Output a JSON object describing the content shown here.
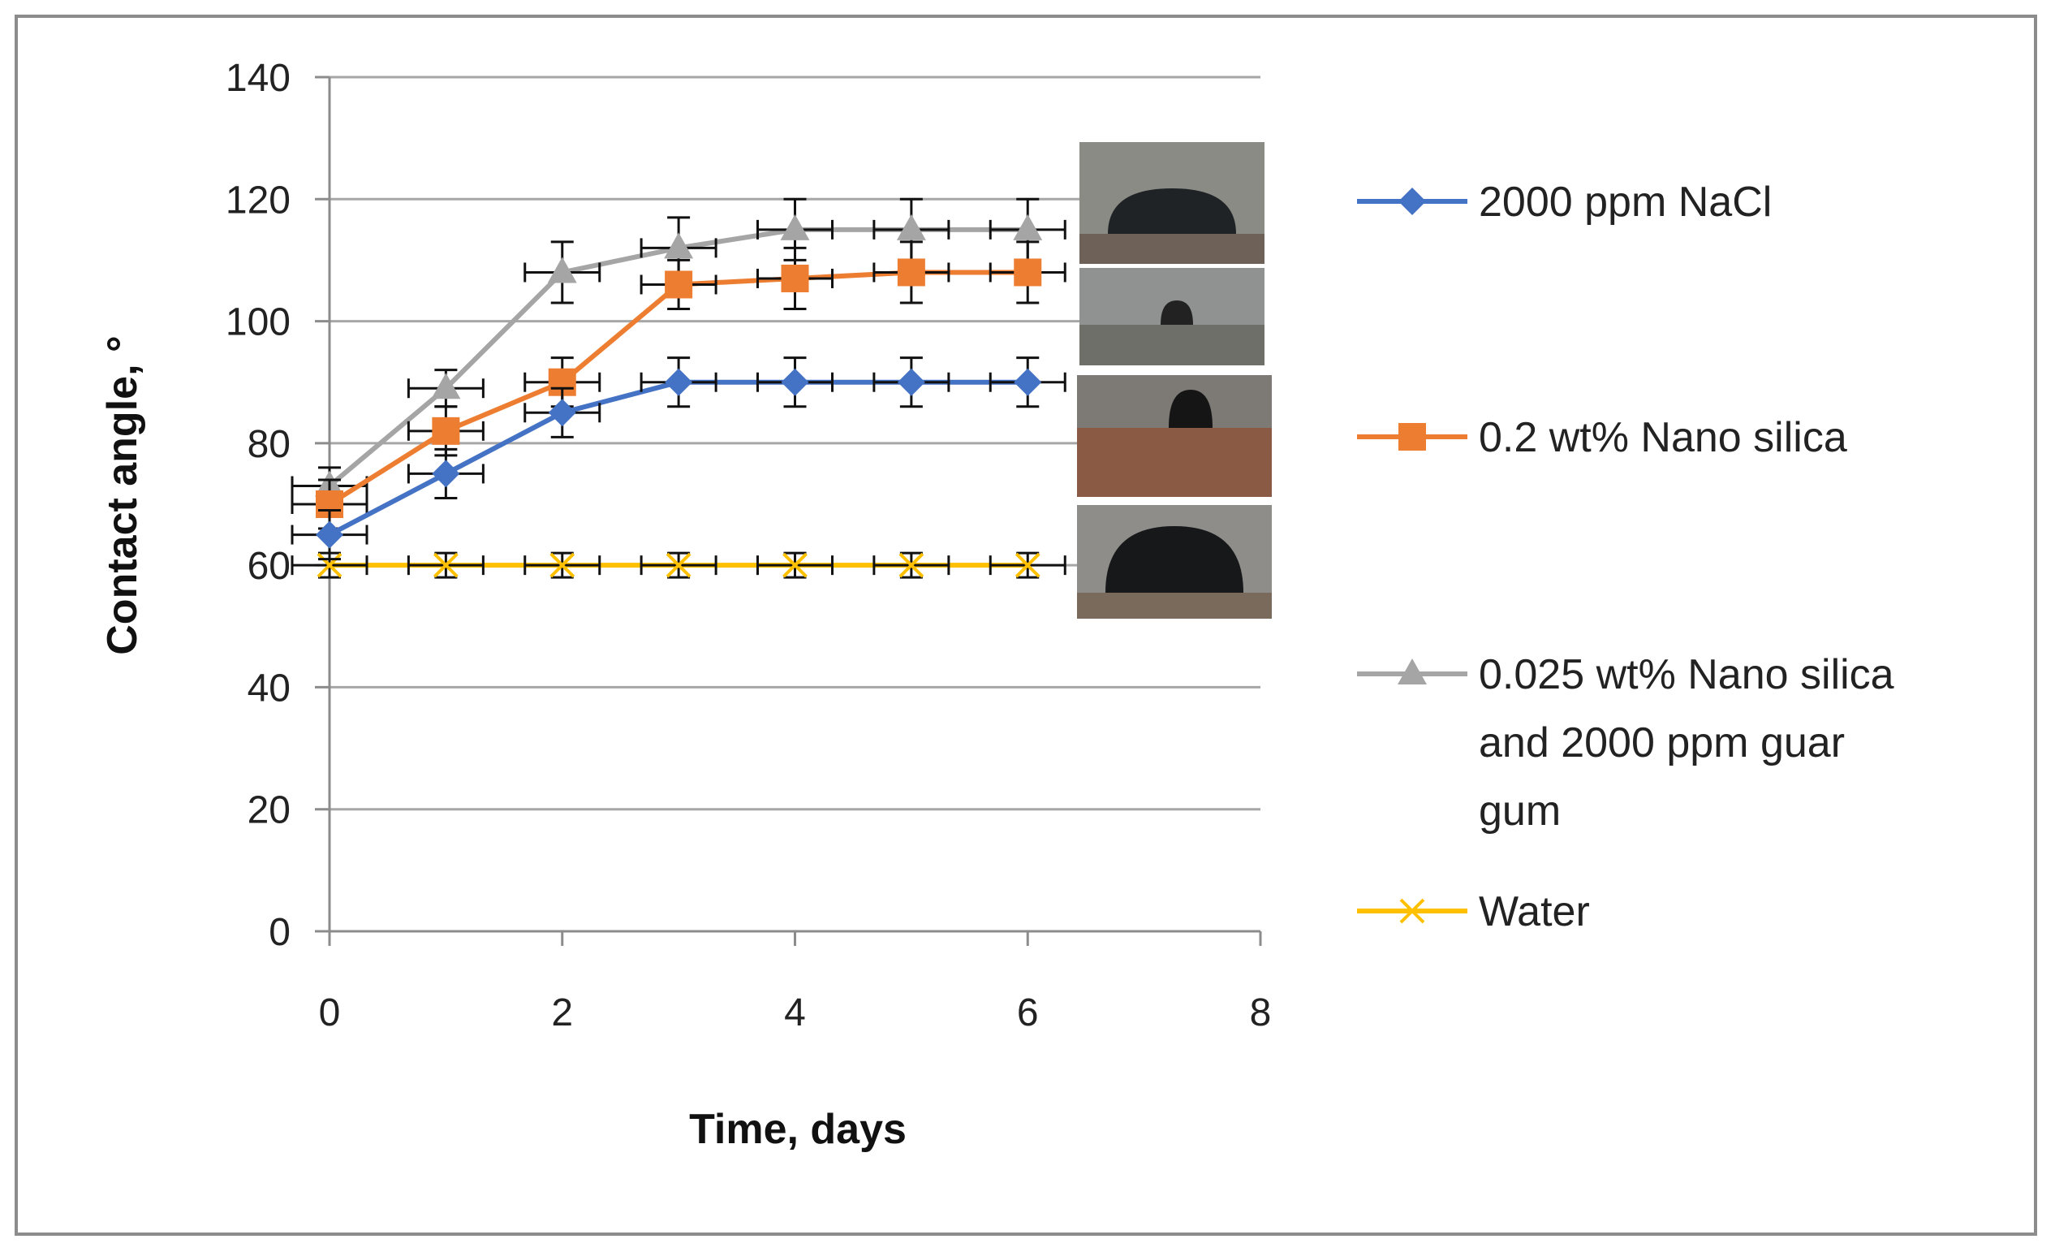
{
  "chart_data": {
    "type": "line",
    "title": "",
    "xlabel": "Time, days",
    "ylabel": "Contact angle, °",
    "xlim": [
      0,
      8
    ],
    "ylim": [
      0,
      140
    ],
    "xticks": [
      "0",
      "2",
      "4",
      "6",
      "8"
    ],
    "yticks": [
      "0",
      "20",
      "40",
      "60",
      "80",
      "100",
      "120",
      "140"
    ],
    "grid": "horizontal",
    "legend_position": "right",
    "x": [
      0,
      1,
      2,
      3,
      4,
      5,
      6
    ],
    "series": [
      {
        "name": "2000 ppm NaCl",
        "color": "#4472C4",
        "marker": "diamond",
        "values": [
          65,
          75,
          85,
          90,
          90,
          90,
          90
        ],
        "error": [
          4,
          4,
          4,
          4,
          4,
          4,
          4
        ]
      },
      {
        "name": "0.2 wt% Nano silica",
        "color": "#ED7D31",
        "marker": "square",
        "values": [
          70,
          82,
          90,
          106,
          107,
          108,
          108
        ],
        "error": [
          4,
          4,
          4,
          4,
          5,
          5,
          5
        ]
      },
      {
        "name": "0.025 wt% Nano silica and 2000 ppm guar gum",
        "color": "#A5A5A5",
        "marker": "triangle",
        "values": [
          73,
          89,
          108,
          112,
          115,
          115,
          115
        ],
        "error": [
          3,
          3,
          5,
          5,
          5,
          5,
          5
        ]
      },
      {
        "name": "Water",
        "color": "#FFC000",
        "marker": "x",
        "values": [
          60,
          60,
          60,
          60,
          60,
          60,
          60
        ],
        "error": [
          2,
          2,
          2,
          2,
          2,
          2,
          2
        ]
      }
    ],
    "legend_lines": [
      [
        "2000 ppm NaCl"
      ],
      [
        "0.2 wt% Nano silica"
      ],
      [
        "0.025 wt% Nano silica",
        "and 2000 ppm guar",
        "gum"
      ],
      [
        "Water"
      ]
    ]
  }
}
